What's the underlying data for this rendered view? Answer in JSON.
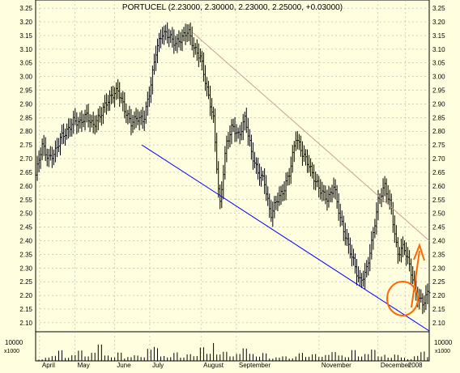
{
  "chart_data": {
    "type": "ohlc",
    "title": "PORTUCEL (2.23000, 2.30000, 2.23000, 2.25000, +0.03000)",
    "y_ticks": [
      "3.25",
      "3.20",
      "3.15",
      "3.10",
      "3.05",
      "3.00",
      "2.95",
      "2.90",
      "2.85",
      "2.80",
      "2.75",
      "2.70",
      "2.65",
      "2.60",
      "2.55",
      "2.50",
      "2.45",
      "2.40",
      "2.35",
      "2.30",
      "2.25",
      "2.20",
      "2.15",
      "2.10"
    ],
    "ylim": [
      2.07,
      3.28
    ],
    "x_labels": [
      "April",
      "May",
      "June",
      "July",
      "August",
      "September",
      "November",
      "December",
      "2008"
    ],
    "volume_label": "10000",
    "volume_unit": "x1000",
    "grid": true,
    "colors": {
      "background": "#ffffe0",
      "price": "#000000",
      "support_line": "#0000ff",
      "resistance_line": "#c8a098",
      "annotation": "#ff6600",
      "grid": "#a0a0a0"
    },
    "price_path": [
      2.64,
      2.75,
      2.7,
      2.72,
      2.78,
      2.8,
      2.84,
      2.83,
      2.86,
      2.82,
      2.85,
      2.9,
      2.93,
      2.95,
      2.88,
      2.83,
      2.85,
      2.84,
      2.95,
      3.1,
      3.16,
      3.15,
      3.12,
      3.14,
      3.17,
      3.1,
      3.07,
      2.95,
      2.85,
      2.52,
      2.75,
      2.82,
      2.78,
      2.85,
      2.72,
      2.65,
      2.62,
      2.49,
      2.55,
      2.58,
      2.65,
      2.78,
      2.72,
      2.68,
      2.62,
      2.58,
      2.55,
      2.6,
      2.48,
      2.4,
      2.33,
      2.25,
      2.28,
      2.4,
      2.55,
      2.6,
      2.52,
      2.35,
      2.38,
      2.3,
      2.2,
      2.17,
      2.22
    ],
    "volume_path": [
      1.0,
      0.3,
      0.6,
      0.8,
      1.5,
      0.4,
      0.7,
      1.2,
      0.5,
      0.9,
      1.8,
      0.6,
      0.4,
      1.0,
      0.3,
      0.5,
      0.8,
      0.6,
      2.2,
      3.0,
      1.1,
      0.7,
      1.4,
      0.5,
      0.9,
      0.6,
      1.6,
      0.8,
      2.0,
      0.7,
      1.0,
      0.5,
      0.8,
      1.5,
      0.9,
      0.6,
      1.2,
      0.4,
      0.7,
      1.1,
      0.5,
      0.8,
      1.3,
      0.6,
      0.9,
      0.5,
      0.7,
      1.0,
      0.6,
      0.4,
      1.2,
      0.5,
      0.8,
      1.4,
      0.6,
      0.9,
      0.5,
      1.1,
      0.7,
      0.4,
      1.0,
      1.6,
      0.6
    ],
    "support_line": [
      [
        0.27,
        2.75
      ],
      [
        1.0,
        2.07
      ]
    ],
    "resistance_line": [
      [
        0.4,
        3.16
      ],
      [
        1.0,
        2.4
      ]
    ]
  }
}
